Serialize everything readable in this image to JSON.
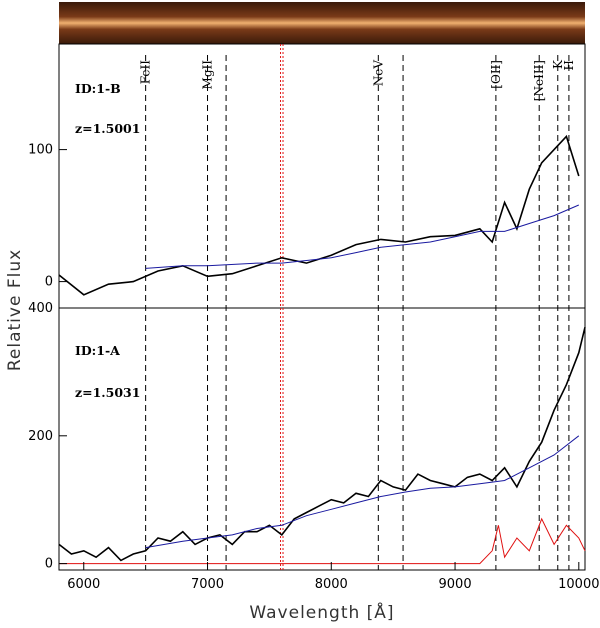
{
  "chart_data": [
    {
      "type": "line",
      "panel": "top",
      "annotation_id": "ID:1-B",
      "annotation_z": "z=1.5001",
      "ylim": [
        -20,
        180
      ],
      "yticks": [
        0,
        100
      ],
      "xlim": [
        5800,
        10050
      ],
      "series": [
        {
          "color": "#000000",
          "points": [
            [
              5800,
              5
            ],
            [
              6000,
              -10
            ],
            [
              6200,
              -2
            ],
            [
              6400,
              0
            ],
            [
              6600,
              8
            ],
            [
              6800,
              12
            ],
            [
              7000,
              4
            ],
            [
              7200,
              6
            ],
            [
              7400,
              12
            ],
            [
              7600,
              18
            ],
            [
              7800,
              14
            ],
            [
              8000,
              20
            ],
            [
              8200,
              28
            ],
            [
              8400,
              32
            ],
            [
              8600,
              30
            ],
            [
              8800,
              34
            ],
            [
              9000,
              35
            ],
            [
              9200,
              40
            ],
            [
              9300,
              30
            ],
            [
              9400,
              60
            ],
            [
              9500,
              40
            ],
            [
              9600,
              70
            ],
            [
              9700,
              90
            ],
            [
              9800,
              100
            ],
            [
              9900,
              110
            ],
            [
              10000,
              80
            ]
          ]
        },
        {
          "color": "#1a1aa0",
          "points": [
            [
              6500,
              10
            ],
            [
              6800,
              12
            ],
            [
              7000,
              12
            ],
            [
              7400,
              14
            ],
            [
              7600,
              14
            ],
            [
              7800,
              16
            ],
            [
              8000,
              18
            ],
            [
              8200,
              22
            ],
            [
              8400,
              26
            ],
            [
              8600,
              28
            ],
            [
              8800,
              30
            ],
            [
              9000,
              34
            ],
            [
              9200,
              38
            ],
            [
              9400,
              38
            ],
            [
              9600,
              44
            ],
            [
              9800,
              50
            ],
            [
              10000,
              58
            ]
          ]
        }
      ]
    },
    {
      "type": "line",
      "panel": "bottom",
      "annotation_id": "ID:1-A",
      "annotation_z": "z=1.5031",
      "ylim": [
        -10,
        400
      ],
      "yticks": [
        0,
        200,
        400
      ],
      "xlim": [
        5800,
        10050
      ],
      "xticks": [
        6000,
        7000,
        8000,
        9000,
        10000
      ],
      "xlabel": "Wavelength [Å]",
      "series": [
        {
          "color": "#000000",
          "points": [
            [
              5800,
              30
            ],
            [
              5900,
              15
            ],
            [
              6000,
              20
            ],
            [
              6100,
              10
            ],
            [
              6200,
              25
            ],
            [
              6300,
              5
            ],
            [
              6400,
              15
            ],
            [
              6500,
              20
            ],
            [
              6600,
              40
            ],
            [
              6700,
              35
            ],
            [
              6800,
              50
            ],
            [
              6900,
              30
            ],
            [
              7000,
              40
            ],
            [
              7100,
              45
            ],
            [
              7200,
              30
            ],
            [
              7300,
              50
            ],
            [
              7400,
              50
            ],
            [
              7500,
              60
            ],
            [
              7600,
              45
            ],
            [
              7700,
              70
            ],
            [
              7800,
              80
            ],
            [
              7900,
              90
            ],
            [
              8000,
              100
            ],
            [
              8100,
              95
            ],
            [
              8200,
              110
            ],
            [
              8300,
              105
            ],
            [
              8400,
              130
            ],
            [
              8500,
              120
            ],
            [
              8600,
              115
            ],
            [
              8700,
              140
            ],
            [
              8800,
              130
            ],
            [
              8900,
              125
            ],
            [
              9000,
              120
            ],
            [
              9100,
              135
            ],
            [
              9200,
              140
            ],
            [
              9300,
              130
            ],
            [
              9400,
              150
            ],
            [
              9500,
              120
            ],
            [
              9600,
              160
            ],
            [
              9700,
              190
            ],
            [
              9800,
              240
            ],
            [
              9900,
              280
            ],
            [
              10000,
              330
            ],
            [
              10050,
              370
            ]
          ]
        },
        {
          "color": "#1a1aa0",
          "points": [
            [
              6500,
              25
            ],
            [
              6800,
              35
            ],
            [
              7000,
              40
            ],
            [
              7200,
              45
            ],
            [
              7400,
              55
            ],
            [
              7600,
              60
            ],
            [
              7800,
              75
            ],
            [
              8000,
              85
            ],
            [
              8200,
              95
            ],
            [
              8400,
              105
            ],
            [
              8600,
              112
            ],
            [
              8800,
              118
            ],
            [
              9000,
              120
            ],
            [
              9200,
              125
            ],
            [
              9400,
              130
            ],
            [
              9600,
              150
            ],
            [
              9800,
              170
            ],
            [
              10000,
              200
            ]
          ]
        },
        {
          "color": "#e01010",
          "points": [
            [
              5800,
              0
            ],
            [
              9200,
              0
            ],
            [
              9300,
              20
            ],
            [
              9350,
              60
            ],
            [
              9400,
              10
            ],
            [
              9500,
              40
            ],
            [
              9600,
              20
            ],
            [
              9700,
              70
            ],
            [
              9800,
              30
            ],
            [
              9900,
              60
            ],
            [
              10000,
              40
            ],
            [
              10050,
              20
            ]
          ]
        }
      ]
    }
  ],
  "spectral_lines": [
    {
      "label": "FeII",
      "x": 6500
    },
    {
      "label": "MgII",
      "x": 7000
    },
    {
      "label": "",
      "x": 7150
    },
    {
      "label": "NeV",
      "x": 8380
    },
    {
      "label": "",
      "x": 8580
    },
    {
      "label": "[OII]",
      "x": 9330
    },
    {
      "label": "[NeIII]",
      "x": 9680
    },
    {
      "label": "K",
      "x": 9830
    },
    {
      "label": "H",
      "x": 9920
    }
  ],
  "shared_ylabel": "Relative Flux",
  "colors": {
    "spectrum": "#000000",
    "template": "#1a1aa0",
    "sky": "#e01010",
    "lines": "#000000",
    "atm_band": "#e01010"
  }
}
